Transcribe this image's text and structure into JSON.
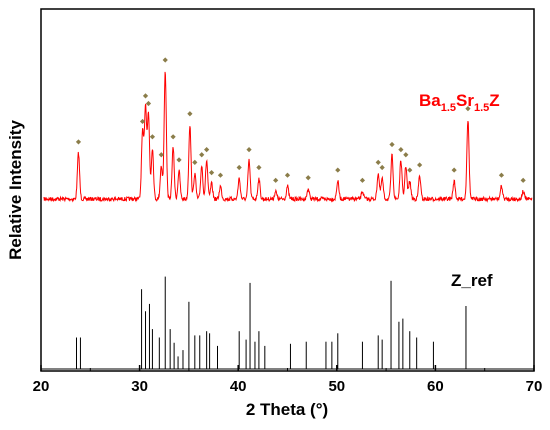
{
  "chart_data": {
    "type": "line",
    "xlabel": "2 Theta (°)",
    "ylabel": "Relative Intensity",
    "xlim": [
      20,
      70
    ],
    "xticks": [
      "20",
      "30",
      "40",
      "50",
      "60",
      "70"
    ],
    "grid": false,
    "colors": {
      "measured": "#ff0000",
      "marker": "#8b7d4a",
      "reference": "#000000",
      "label_measured": "#ff0000",
      "label_reference": "#000000"
    },
    "series": [
      {
        "name": "Ba1.5Sr1.5Z",
        "name_parts": {
          "a": "Ba",
          "a_sub": "1.5",
          "b": "Sr",
          "b_sub": "1.5",
          "c": "Z"
        },
        "baseline": 0.0,
        "peaks": [
          [
            23.8,
            0.36
          ],
          [
            30.3,
            0.52
          ],
          [
            30.6,
            0.72
          ],
          [
            30.9,
            0.66
          ],
          [
            31.3,
            0.4
          ],
          [
            32.2,
            0.26
          ],
          [
            32.6,
            1.0
          ],
          [
            33.4,
            0.4
          ],
          [
            34.0,
            0.22
          ],
          [
            35.1,
            0.58
          ],
          [
            35.6,
            0.2
          ],
          [
            36.3,
            0.26
          ],
          [
            36.8,
            0.3
          ],
          [
            37.3,
            0.12
          ],
          [
            38.2,
            0.1
          ],
          [
            40.1,
            0.16
          ],
          [
            41.1,
            0.3
          ],
          [
            42.1,
            0.16
          ],
          [
            43.8,
            0.06
          ],
          [
            45.0,
            0.1
          ],
          [
            47.1,
            0.08
          ],
          [
            50.1,
            0.14
          ],
          [
            52.6,
            0.06
          ],
          [
            54.2,
            0.2
          ],
          [
            54.6,
            0.16
          ],
          [
            55.6,
            0.34
          ],
          [
            56.5,
            0.3
          ],
          [
            57.0,
            0.26
          ],
          [
            57.4,
            0.14
          ],
          [
            58.4,
            0.18
          ],
          [
            61.9,
            0.14
          ],
          [
            63.3,
            0.62
          ],
          [
            66.7,
            0.1
          ],
          [
            68.9,
            0.06
          ]
        ]
      },
      {
        "name": "Z_ref",
        "type": "stick",
        "peaks": [
          [
            23.6,
            0.3
          ],
          [
            24.0,
            0.3
          ],
          [
            30.2,
            0.76
          ],
          [
            30.6,
            0.55
          ],
          [
            31.0,
            0.62
          ],
          [
            31.3,
            0.38
          ],
          [
            32.0,
            0.3
          ],
          [
            32.6,
            0.88
          ],
          [
            33.1,
            0.38
          ],
          [
            33.5,
            0.25
          ],
          [
            33.9,
            0.12
          ],
          [
            34.4,
            0.18
          ],
          [
            35.0,
            0.64
          ],
          [
            35.6,
            0.32
          ],
          [
            36.1,
            0.32
          ],
          [
            36.8,
            0.36
          ],
          [
            37.1,
            0.34
          ],
          [
            37.9,
            0.22
          ],
          [
            40.1,
            0.36
          ],
          [
            40.8,
            0.28
          ],
          [
            41.2,
            0.82
          ],
          [
            41.7,
            0.26
          ],
          [
            42.1,
            0.36
          ],
          [
            42.7,
            0.22
          ],
          [
            45.3,
            0.24
          ],
          [
            46.9,
            0.26
          ],
          [
            48.9,
            0.26
          ],
          [
            49.5,
            0.26
          ],
          [
            50.1,
            0.34
          ],
          [
            52.6,
            0.26
          ],
          [
            54.2,
            0.32
          ],
          [
            54.6,
            0.28
          ],
          [
            55.5,
            0.84
          ],
          [
            56.3,
            0.45
          ],
          [
            56.7,
            0.48
          ],
          [
            57.4,
            0.36
          ],
          [
            58.1,
            0.3
          ],
          [
            59.8,
            0.26
          ],
          [
            63.1,
            0.6
          ]
        ]
      }
    ]
  }
}
